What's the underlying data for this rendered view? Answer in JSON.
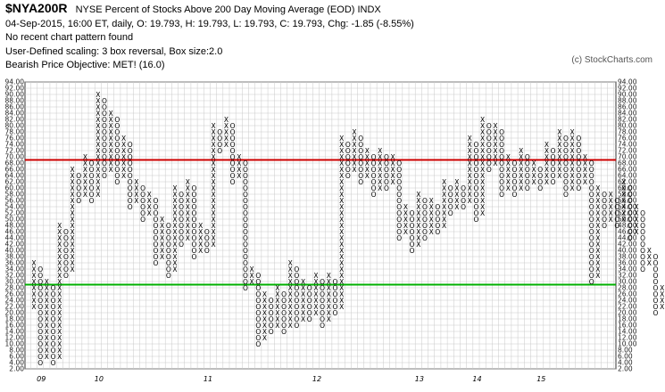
{
  "header": {
    "symbol": "$NYA200R",
    "title": "NYSE Percent of Stocks Above 200 Day Moving Average (EOD)  INDX",
    "ohlc_line": "04-Sep-2015, 16:00 ET, daily, O: 19.793, H: 19.793, L: 19.793, C: 19.793, Chg: -1.85 (-8.55%)",
    "pattern_line": "No recent chart pattern found",
    "scaling_line": "User-Defined scaling: 3 box reversal, Box size:2.0",
    "objective_line": "Bearish Price Objective: MET! (16.0)"
  },
  "copyright": "(c) StockCharts.com",
  "colors": {
    "grid": "#c9c9c9",
    "red_line": "#cc0000",
    "green_line": "#00b000",
    "month_marker": "#b00020"
  },
  "chart_data": {
    "type": "point-and-figure",
    "box_size": 2.0,
    "reversal": 3,
    "ylim": [
      2,
      94
    ],
    "y_ticks": [
      "2.00",
      "4.00",
      "6.00",
      "8.00",
      "10.00",
      "12.00",
      "14.00",
      "16.00",
      "18.00",
      "20.00",
      "22.00",
      "24.00",
      "26.00",
      "28.00",
      "30.00",
      "32.00",
      "34.00",
      "36.00",
      "38.00",
      "40.00",
      "42.00",
      "44.00",
      "46.00",
      "48.00",
      "50.00",
      "52.00",
      "54.00",
      "56.00",
      "58.00",
      "60.00",
      "62.00",
      "64.00",
      "66.00",
      "68.00",
      "70.00",
      "72.00",
      "74.00",
      "76.00",
      "78.00",
      "80.00",
      "82.00",
      "84.00",
      "86.00",
      "88.00",
      "90.00",
      "92.00",
      "94.00"
    ],
    "x_labels": [
      {
        "label": "09",
        "col": 1
      },
      {
        "label": "10",
        "col": 10
      },
      {
        "label": "11",
        "col": 27
      },
      {
        "label": "12",
        "col": 44
      },
      {
        "label": "13",
        "col": 60
      },
      {
        "label": "14",
        "col": 69
      },
      {
        "label": "15",
        "col": 79
      }
    ],
    "horizontal_lines": [
      {
        "value": 69,
        "color": "red"
      },
      {
        "value": 29,
        "color": "green"
      }
    ],
    "current_price_label": "19.79",
    "columns": [
      {
        "t": "X",
        "lo": 22,
        "hi": 36
      },
      {
        "t": "O",
        "lo": 4,
        "hi": 34
      },
      {
        "t": "X",
        "lo": 6,
        "hi": 30
      },
      {
        "t": "O",
        "lo": 4,
        "hi": 28
      },
      {
        "t": "X",
        "lo": 6,
        "hi": 48
      },
      {
        "t": "O",
        "lo": 32,
        "hi": 46
      },
      {
        "t": "X",
        "lo": 34,
        "hi": 66
      },
      {
        "t": "O",
        "lo": 56,
        "hi": 64
      },
      {
        "t": "X",
        "lo": 58,
        "hi": 70
      },
      {
        "t": "O",
        "lo": 56,
        "hi": 68
      },
      {
        "t": "X",
        "lo": 58,
        "hi": 90
      },
      {
        "t": "O",
        "lo": 64,
        "hi": 88
      },
      {
        "t": "X",
        "lo": 66,
        "hi": 84
      },
      {
        "t": "O",
        "lo": 62,
        "hi": 82
      },
      {
        "t": "X",
        "lo": 64,
        "hi": 76
      },
      {
        "t": "O",
        "lo": 54,
        "hi": 74
      },
      {
        "t": "X",
        "lo": 56,
        "hi": 62
      },
      {
        "t": "O",
        "lo": 50,
        "hi": 60
      },
      {
        "t": "X",
        "lo": 52,
        "hi": 58
      },
      {
        "t": "O",
        "lo": 36,
        "hi": 56
      },
      {
        "t": "X",
        "lo": 38,
        "hi": 50
      },
      {
        "t": "O",
        "lo": 32,
        "hi": 48
      },
      {
        "t": "X",
        "lo": 34,
        "hi": 60
      },
      {
        "t": "O",
        "lo": 42,
        "hi": 58
      },
      {
        "t": "X",
        "lo": 44,
        "hi": 62
      },
      {
        "t": "O",
        "lo": 38,
        "hi": 60
      },
      {
        "t": "X",
        "lo": 40,
        "hi": 48
      },
      {
        "t": "O",
        "lo": 40,
        "hi": 46
      },
      {
        "t": "X",
        "lo": 42,
        "hi": 80
      },
      {
        "t": "O",
        "lo": 72,
        "hi": 78
      },
      {
        "t": "X",
        "lo": 74,
        "hi": 82
      },
      {
        "t": "O",
        "lo": 62,
        "hi": 80
      },
      {
        "t": "X",
        "lo": 64,
        "hi": 70
      },
      {
        "t": "O",
        "lo": 28,
        "hi": 68
      },
      {
        "t": "X",
        "lo": 30,
        "hi": 34
      },
      {
        "t": "O",
        "lo": 10,
        "hi": 32
      },
      {
        "t": "X",
        "lo": 12,
        "hi": 26
      },
      {
        "t": "O",
        "lo": 14,
        "hi": 24
      },
      {
        "t": "X",
        "lo": 16,
        "hi": 28
      },
      {
        "t": "O",
        "lo": 14,
        "hi": 26
      },
      {
        "t": "X",
        "lo": 16,
        "hi": 36
      },
      {
        "t": "O",
        "lo": 16,
        "hi": 34
      },
      {
        "t": "X",
        "lo": 18,
        "hi": 30
      },
      {
        "t": "O",
        "lo": 18,
        "hi": 28
      },
      {
        "t": "X",
        "lo": 20,
        "hi": 32
      },
      {
        "t": "O",
        "lo": 16,
        "hi": 30
      },
      {
        "t": "X",
        "lo": 18,
        "hi": 32
      },
      {
        "t": "O",
        "lo": 20,
        "hi": 30
      },
      {
        "t": "X",
        "lo": 22,
        "hi": 76
      },
      {
        "t": "O",
        "lo": 64,
        "hi": 74
      },
      {
        "t": "X",
        "lo": 66,
        "hi": 78
      },
      {
        "t": "O",
        "lo": 62,
        "hi": 76
      },
      {
        "t": "X",
        "lo": 64,
        "hi": 72
      },
      {
        "t": "O",
        "lo": 58,
        "hi": 70
      },
      {
        "t": "X",
        "lo": 60,
        "hi": 72
      },
      {
        "t": "O",
        "lo": 60,
        "hi": 70
      },
      {
        "t": "X",
        "lo": 62,
        "hi": 70
      },
      {
        "t": "O",
        "lo": 44,
        "hi": 68
      },
      {
        "t": "X",
        "lo": 46,
        "hi": 54
      },
      {
        "t": "O",
        "lo": 40,
        "hi": 52
      },
      {
        "t": "X",
        "lo": 42,
        "hi": 58
      },
      {
        "t": "O",
        "lo": 44,
        "hi": 56
      },
      {
        "t": "X",
        "lo": 46,
        "hi": 56
      },
      {
        "t": "O",
        "lo": 46,
        "hi": 54
      },
      {
        "t": "X",
        "lo": 48,
        "hi": 62
      },
      {
        "t": "O",
        "lo": 52,
        "hi": 60
      },
      {
        "t": "X",
        "lo": 54,
        "hi": 62
      },
      {
        "t": "O",
        "lo": 54,
        "hi": 60
      },
      {
        "t": "X",
        "lo": 56,
        "hi": 76
      },
      {
        "t": "O",
        "lo": 50,
        "hi": 74
      },
      {
        "t": "X",
        "lo": 52,
        "hi": 82
      },
      {
        "t": "O",
        "lo": 66,
        "hi": 80
      },
      {
        "t": "X",
        "lo": 68,
        "hi": 80
      },
      {
        "t": "O",
        "lo": 58,
        "hi": 78
      },
      {
        "t": "X",
        "lo": 60,
        "hi": 70
      },
      {
        "t": "O",
        "lo": 58,
        "hi": 68
      },
      {
        "t": "X",
        "lo": 60,
        "hi": 72
      },
      {
        "t": "O",
        "lo": 60,
        "hi": 70
      },
      {
        "t": "X",
        "lo": 62,
        "hi": 68
      },
      {
        "t": "O",
        "lo": 60,
        "hi": 66
      },
      {
        "t": "X",
        "lo": 62,
        "hi": 74
      },
      {
        "t": "O",
        "lo": 62,
        "hi": 72
      },
      {
        "t": "X",
        "lo": 64,
        "hi": 78
      },
      {
        "t": "O",
        "lo": 58,
        "hi": 76
      },
      {
        "t": "X",
        "lo": 60,
        "hi": 78
      },
      {
        "t": "O",
        "lo": 60,
        "hi": 76
      },
      {
        "t": "X",
        "lo": 62,
        "hi": 70
      },
      {
        "t": "O",
        "lo": 30,
        "hi": 68
      },
      {
        "t": "X",
        "lo": 32,
        "hi": 60
      },
      {
        "t": "O",
        "lo": 48,
        "hi": 58
      },
      {
        "t": "X",
        "lo": 50,
        "hi": 58
      },
      {
        "t": "O",
        "lo": 48,
        "hi": 56
      },
      {
        "t": "X",
        "lo": 50,
        "hi": 62
      },
      {
        "t": "O",
        "lo": 44,
        "hi": 60
      },
      {
        "t": "X",
        "lo": 46,
        "hi": 54
      },
      {
        "t": "O",
        "lo": 34,
        "hi": 52
      },
      {
        "t": "X",
        "lo": 36,
        "hi": 40
      },
      {
        "t": "O",
        "lo": 20,
        "hi": 38
      },
      {
        "t": "X",
        "lo": 22,
        "hi": 28
      },
      {
        "t": "O",
        "lo": 20,
        "hi": 26
      }
    ]
  }
}
